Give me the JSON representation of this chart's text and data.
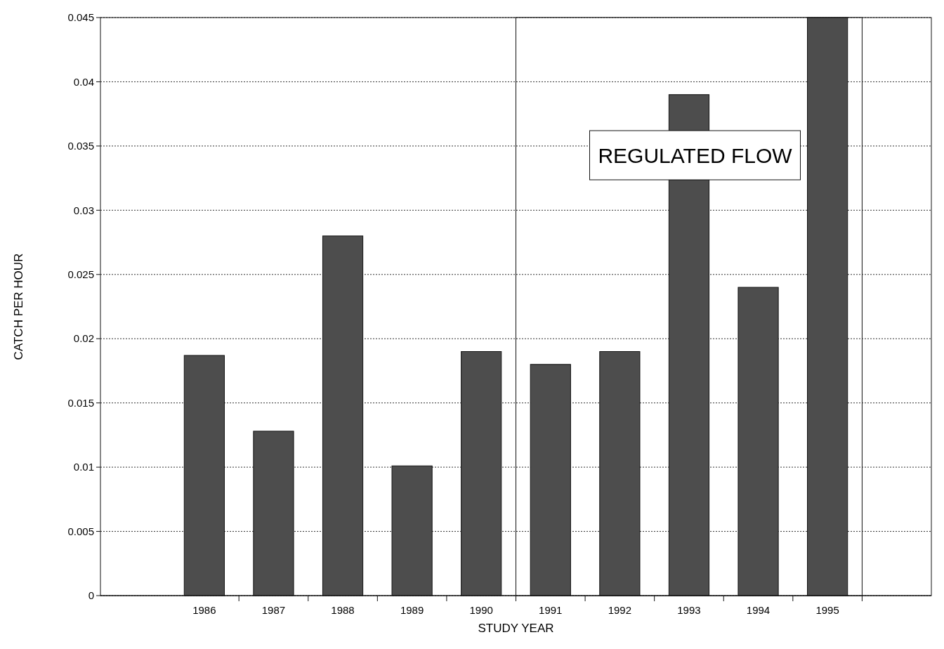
{
  "chart_data": {
    "type": "bar",
    "xlabel": "STUDY YEAR",
    "ylabel": "CATCH PER HOUR",
    "categories": [
      "1986",
      "1987",
      "1988",
      "1989",
      "1990",
      "1991",
      "1992",
      "1993",
      "1994",
      "1995"
    ],
    "values": [
      0.0187,
      0.0128,
      0.028,
      0.0101,
      0.019,
      0.018,
      0.019,
      0.039,
      0.024,
      0.045
    ],
    "color": "#4d4d4d",
    "ylim": [
      0,
      0.045
    ],
    "yticks": [
      0,
      0.005,
      0.01,
      0.015,
      0.02,
      0.025,
      0.03,
      0.035,
      0.04,
      0.045
    ],
    "grid": "y",
    "bands": [
      {
        "axis": "x",
        "from": "1991",
        "to": "1995",
        "label": "REGULATED FLOW",
        "color": "#ffffff"
      }
    ]
  }
}
